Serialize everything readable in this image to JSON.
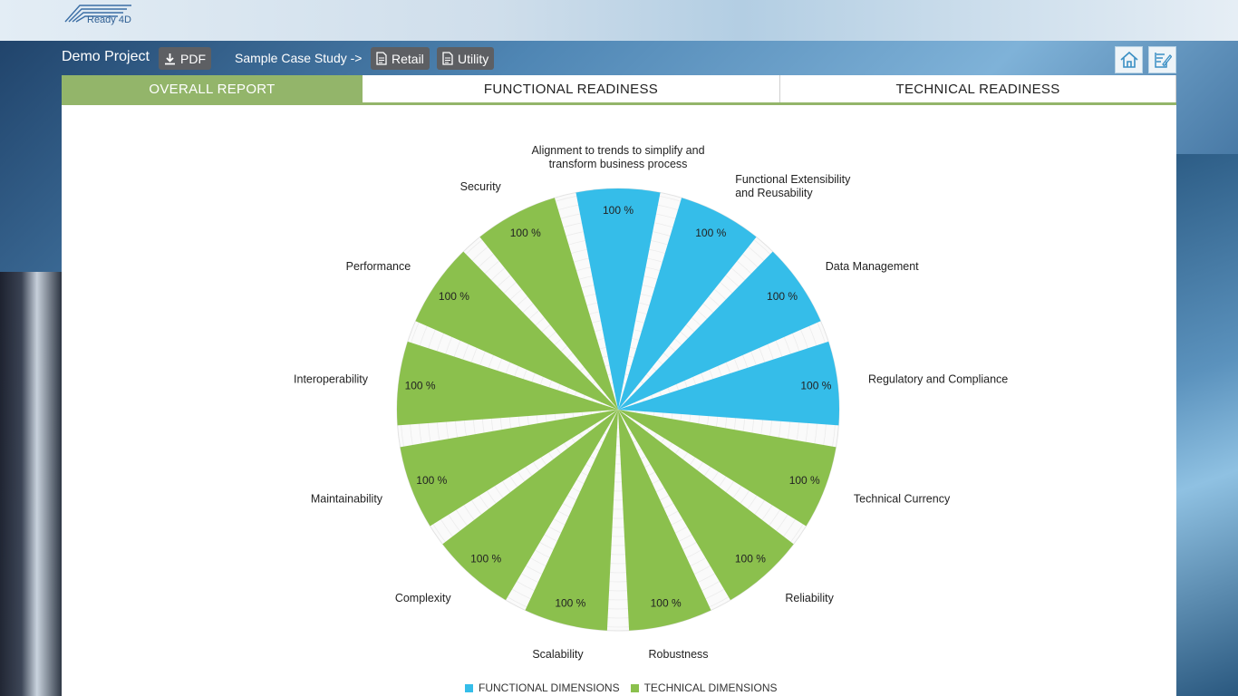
{
  "brand": {
    "logo_text": "Ready 4D"
  },
  "header": {
    "project_title": "Demo Project",
    "pdf_label": "PDF",
    "sample_label": "Sample Case Study ->",
    "retail_label": "Retail",
    "utility_label": "Utility"
  },
  "tabs": [
    {
      "label": "OVERALL REPORT",
      "active": true
    },
    {
      "label": "FUNCTIONAL READINESS",
      "active": false
    },
    {
      "label": "TECHNICAL READINESS",
      "active": false
    }
  ],
  "colors": {
    "functional": "#35bde9",
    "technical": "#8bc04d",
    "tab_active": "#93b56a"
  },
  "chart_data": {
    "type": "polar-bar",
    "max": 100,
    "value_suffix": " %",
    "categories": [
      {
        "label": "Alignment to trends to simplify and\ntransform business process",
        "value": 100,
        "series": "functional"
      },
      {
        "label": "Functional Extensibility\nand Reusability",
        "value": 100,
        "series": "functional"
      },
      {
        "label": "Data Management",
        "value": 100,
        "series": "functional"
      },
      {
        "label": "Regulatory and Compliance",
        "value": 100,
        "series": "functional"
      },
      {
        "label": "Technical Currency",
        "value": 100,
        "series": "technical"
      },
      {
        "label": "Reliability",
        "value": 100,
        "series": "technical"
      },
      {
        "label": "Robustness",
        "value": 100,
        "series": "technical"
      },
      {
        "label": "Scalability",
        "value": 100,
        "series": "technical"
      },
      {
        "label": "Complexity",
        "value": 100,
        "series": "technical"
      },
      {
        "label": "Maintainability",
        "value": 100,
        "series": "technical"
      },
      {
        "label": "Interoperability",
        "value": 100,
        "series": "technical"
      },
      {
        "label": "Performance",
        "value": 100,
        "series": "technical"
      },
      {
        "label": "Security",
        "value": 100,
        "series": "technical"
      }
    ],
    "legend": [
      {
        "name": "FUNCTIONAL DIMENSIONS",
        "series": "functional"
      },
      {
        "name": "TECHNICAL DIMENSIONS",
        "series": "technical"
      }
    ]
  }
}
